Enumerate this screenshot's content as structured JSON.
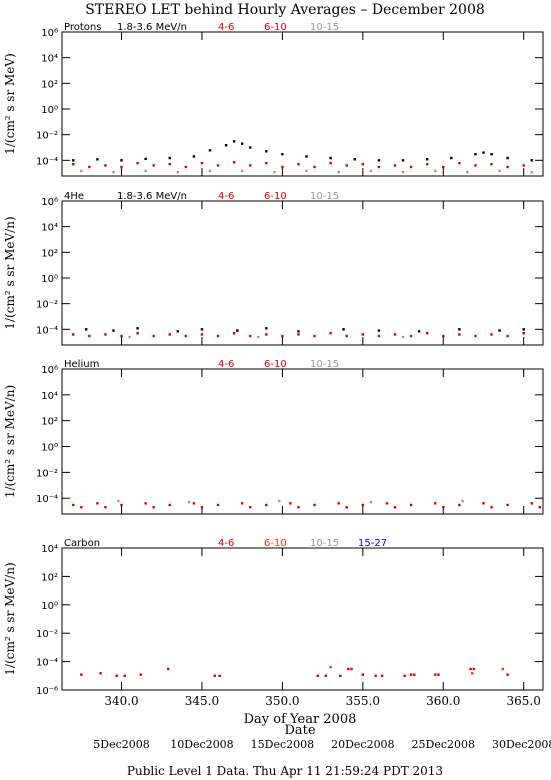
{
  "title": "STEREO LET behind Hourly Averages – December 2008",
  "footer": "Public Level 1 Data. Thu Apr 11 21:59:24 PDT 2013",
  "xlabel": "Day of Year 2008",
  "date_label": "Date",
  "date_ticks": [
    {
      "value": 340,
      "label": "5Dec2008"
    },
    {
      "value": 345,
      "label": "10Dec2008"
    },
    {
      "value": 350,
      "label": "15Dec2008"
    },
    {
      "value": 355,
      "label": "20Dec2008"
    },
    {
      "value": 360,
      "label": "25Dec2008"
    },
    {
      "value": 365,
      "label": "30Dec2008"
    }
  ],
  "chart_data": [
    {
      "type": "scatter",
      "title": "Protons",
      "ylabel": "1/(cm² s sr MeV)",
      "log_y": true,
      "xlim": [
        336.3,
        366.2
      ],
      "xticks": [
        340,
        345,
        350,
        355,
        360,
        365
      ],
      "ylim": [
        6e-06,
        1000000
      ],
      "yticks": [
        {
          "value": 1000000,
          "label": "10⁶"
        },
        {
          "value": 10000,
          "label": "10⁴"
        },
        {
          "value": 100,
          "label": "10²"
        },
        {
          "value": 1,
          "label": "10⁰"
        },
        {
          "value": 0.01,
          "label": "10⁻²"
        },
        {
          "value": 0.0001,
          "label": "10⁻⁴"
        }
      ],
      "series": [
        {
          "name": "1.8-3.6 MeV/n",
          "color": "#000000",
          "x": [
            337,
            338.5,
            340,
            341.5,
            343,
            344.5,
            345.5,
            346.5,
            347,
            347.5,
            348,
            349,
            350,
            351.5,
            353,
            354.5,
            356,
            357.5,
            359,
            360.5,
            362,
            362.5,
            363,
            364,
            365.5
          ],
          "values": [
            0.0001,
            0.00012,
            0.0001,
            0.00013,
            0.00015,
            0.0002,
            0.0006,
            0.0015,
            0.003,
            0.002,
            0.001,
            0.0005,
            0.0003,
            0.0002,
            0.00015,
            0.00012,
            0.0001,
            0.0001,
            0.00012,
            0.00015,
            0.0003,
            0.0004,
            0.0003,
            0.00015,
            0.0001
          ]
        },
        {
          "name": "4-6",
          "color": "#d40000",
          "x": [
            337,
            339,
            341,
            343,
            345,
            347,
            349,
            351,
            353,
            355,
            357,
            359,
            361,
            363,
            365
          ],
          "values": [
            5e-05,
            4e-05,
            6e-05,
            5e-05,
            6e-05,
            7e-05,
            6e-05,
            5e-05,
            6e-05,
            5e-05,
            4e-05,
            5e-05,
            6e-05,
            5e-05,
            4e-05
          ]
        },
        {
          "name": "6-10",
          "color": "#e00000",
          "x": [
            338,
            340,
            342,
            344,
            346,
            348,
            350,
            352,
            354,
            356,
            358,
            360,
            362,
            364
          ],
          "values": [
            3e-05,
            3e-05,
            4e-05,
            3e-05,
            4e-05,
            4e-05,
            3e-05,
            3e-05,
            4e-05,
            3e-05,
            3e-05,
            3e-05,
            4e-05,
            3e-05
          ]
        },
        {
          "name": "10-15",
          "color": "#999999",
          "x": [
            337.5,
            339.5,
            341.5,
            343.5,
            345.5,
            347.5,
            349.5,
            351.5,
            353.5,
            355.5,
            357.5,
            359.5,
            361.5,
            363.5,
            365.5
          ],
          "values": [
            1.5e-05,
            1.2e-05,
            1.5e-05,
            1.2e-05,
            1.5e-05,
            1.5e-05,
            1.2e-05,
            1.5e-05,
            1.2e-05,
            1.5e-05,
            1.2e-05,
            1.5e-05,
            1.2e-05,
            1.5e-05,
            1.2e-05
          ]
        }
      ]
    },
    {
      "type": "scatter",
      "title": "4He",
      "ylabel": "1/(cm² s sr MeV/n)",
      "log_y": true,
      "xlim": [
        336.3,
        366.2
      ],
      "xticks": [
        340,
        345,
        350,
        355,
        360,
        365
      ],
      "ylim": [
        6e-06,
        1000000
      ],
      "yticks": [
        {
          "value": 1000000,
          "label": "10⁶"
        },
        {
          "value": 10000,
          "label": "10⁴"
        },
        {
          "value": 100,
          "label": "10²"
        },
        {
          "value": 1,
          "label": "10⁰"
        },
        {
          "value": 0.01,
          "label": "10⁻²"
        },
        {
          "value": 0.0001,
          "label": "10⁻⁴"
        }
      ],
      "series": [
        {
          "name": "1.8-3.6 MeV/n",
          "color": "#000000",
          "x": [
            337.8,
            339.5,
            341,
            343.5,
            345,
            347.2,
            349,
            351,
            353.8,
            356,
            358.5,
            361,
            363.5,
            365
          ],
          "values": [
            0.0001,
            8e-05,
            0.00012,
            7e-05,
            0.0001,
            8e-05,
            0.00012,
            7e-05,
            0.0001,
            8e-05,
            7e-05,
            0.0001,
            8e-05,
            0.0001
          ]
        },
        {
          "name": "4-6",
          "color": "#d40000",
          "x": [
            337,
            339,
            341,
            343,
            345,
            347,
            349,
            351,
            353,
            355,
            357,
            359,
            361,
            363,
            365
          ],
          "values": [
            4e-05,
            4e-05,
            5e-05,
            4e-05,
            4e-05,
            5e-05,
            4e-05,
            4e-05,
            5e-05,
            4e-05,
            4e-05,
            5e-05,
            4e-05,
            4e-05,
            5e-05
          ]
        },
        {
          "name": "6-10",
          "color": "#e00000",
          "x": [
            338,
            340,
            342,
            344,
            346,
            348,
            350,
            352,
            354,
            356,
            358,
            360,
            362,
            364
          ],
          "values": [
            3e-05,
            3e-05,
            3e-05,
            3e-05,
            3e-05,
            3e-05,
            3e-05,
            3e-05,
            3e-05,
            3e-05,
            3e-05,
            3e-05,
            3e-05,
            3e-05
          ]
        },
        {
          "name": "10-15",
          "color": "#999999",
          "x": [
            340.5,
            348.5,
            357.5
          ],
          "values": [
            2.5e-05,
            2.5e-05,
            2.5e-05
          ]
        }
      ]
    },
    {
      "type": "scatter",
      "title": "Helium",
      "ylabel": "1/(cm² s sr MeV/n)",
      "log_y": true,
      "xlim": [
        336.3,
        366.2
      ],
      "xticks": [
        340,
        345,
        350,
        355,
        360,
        365
      ],
      "ylim": [
        6e-06,
        1000000
      ],
      "yticks": [
        {
          "value": 1000000,
          "label": "10⁶"
        },
        {
          "value": 10000,
          "label": "10⁴"
        },
        {
          "value": 100,
          "label": "10²"
        },
        {
          "value": 1,
          "label": "10⁰"
        },
        {
          "value": 0.01,
          "label": "10⁻²"
        },
        {
          "value": 0.0001,
          "label": "10⁻⁴"
        }
      ],
      "series": [
        {
          "name": "4-6",
          "color": "#d40000",
          "x": [
            337,
            338.5,
            340,
            341.5,
            343,
            344.5,
            346,
            347.5,
            349,
            350.5,
            352,
            353.5,
            355,
            356.5,
            358,
            359.5,
            361,
            362.5,
            364,
            365.5
          ],
          "values": [
            3e-05,
            4e-05,
            3e-05,
            4e-05,
            3e-05,
            4e-05,
            3e-05,
            4e-05,
            3e-05,
            4e-05,
            3e-05,
            4e-05,
            3e-05,
            4e-05,
            3e-05,
            4e-05,
            3e-05,
            4e-05,
            3e-05,
            4e-05
          ]
        },
        {
          "name": "6-10",
          "color": "#e00000",
          "x": [
            337.5,
            339,
            342,
            345,
            348,
            351,
            354,
            357,
            360,
            363,
            366
          ],
          "values": [
            2e-05,
            2e-05,
            2e-05,
            2e-05,
            2e-05,
            2e-05,
            2e-05,
            2e-05,
            2e-05,
            2e-05,
            2e-05
          ]
        },
        {
          "name": "10-15",
          "color": "#999999",
          "x": [
            339.8,
            344.2,
            349.8,
            355.5,
            361.2
          ],
          "values": [
            6e-05,
            5e-05,
            6e-05,
            5e-05,
            6e-05
          ]
        }
      ]
    },
    {
      "type": "scatter",
      "title": "Carbon",
      "ylabel": "1/(cm² s sr MeV/n)",
      "log_y": true,
      "xlim": [
        336.3,
        366.2
      ],
      "xticks": [
        {
          "value": 340,
          "label": "340.0"
        },
        {
          "value": 345,
          "label": "345.0"
        },
        {
          "value": 350,
          "label": "350.0"
        },
        {
          "value": 355,
          "label": "355.0"
        },
        {
          "value": 360,
          "label": "360.0"
        },
        {
          "value": 365,
          "label": "365.0"
        }
      ],
      "ylim": [
        1e-06,
        10000
      ],
      "yticks": [
        {
          "value": 10000,
          "label": "10⁴"
        },
        {
          "value": 100,
          "label": "10²"
        },
        {
          "value": 1,
          "label": "10⁰"
        },
        {
          "value": 0.01,
          "label": "10⁻²"
        },
        {
          "value": 0.0001,
          "label": "10⁻⁴"
        },
        {
          "value": 1e-06,
          "label": "10⁻⁶"
        }
      ],
      "series": [
        {
          "name": "4-6",
          "color": "#d40000",
          "x": [
            337.5,
            338.7,
            339.7,
            340.2,
            341.2,
            342.9,
            345.8,
            346.1,
            352.2,
            352.7,
            353.6,
            354.1,
            354.3,
            355,
            355.8,
            356.2,
            357.6,
            358,
            358.2,
            359.5,
            359.7,
            361.7,
            361.9,
            364
          ],
          "values": [
            1.2e-05,
            1.5e-05,
            1e-05,
            1e-05,
            1.2e-05,
            3e-05,
            1e-05,
            1e-05,
            1e-05,
            1e-05,
            1e-05,
            3e-05,
            3e-05,
            1.2e-05,
            1e-05,
            1e-05,
            1e-05,
            1.2e-05,
            1.2e-05,
            1.2e-05,
            1.2e-05,
            3e-05,
            3e-05,
            1.2e-05
          ]
        },
        {
          "name": "6-10",
          "color": "#ff3300",
          "x": [
            353,
            361.8,
            363.7
          ],
          "values": [
            4e-05,
            1.5e-05,
            3e-05
          ]
        },
        {
          "name": "10-15",
          "color": "#999999",
          "x": [],
          "values": []
        },
        {
          "name": "15-27",
          "color": "#0000e0",
          "x": [],
          "values": []
        }
      ]
    }
  ]
}
